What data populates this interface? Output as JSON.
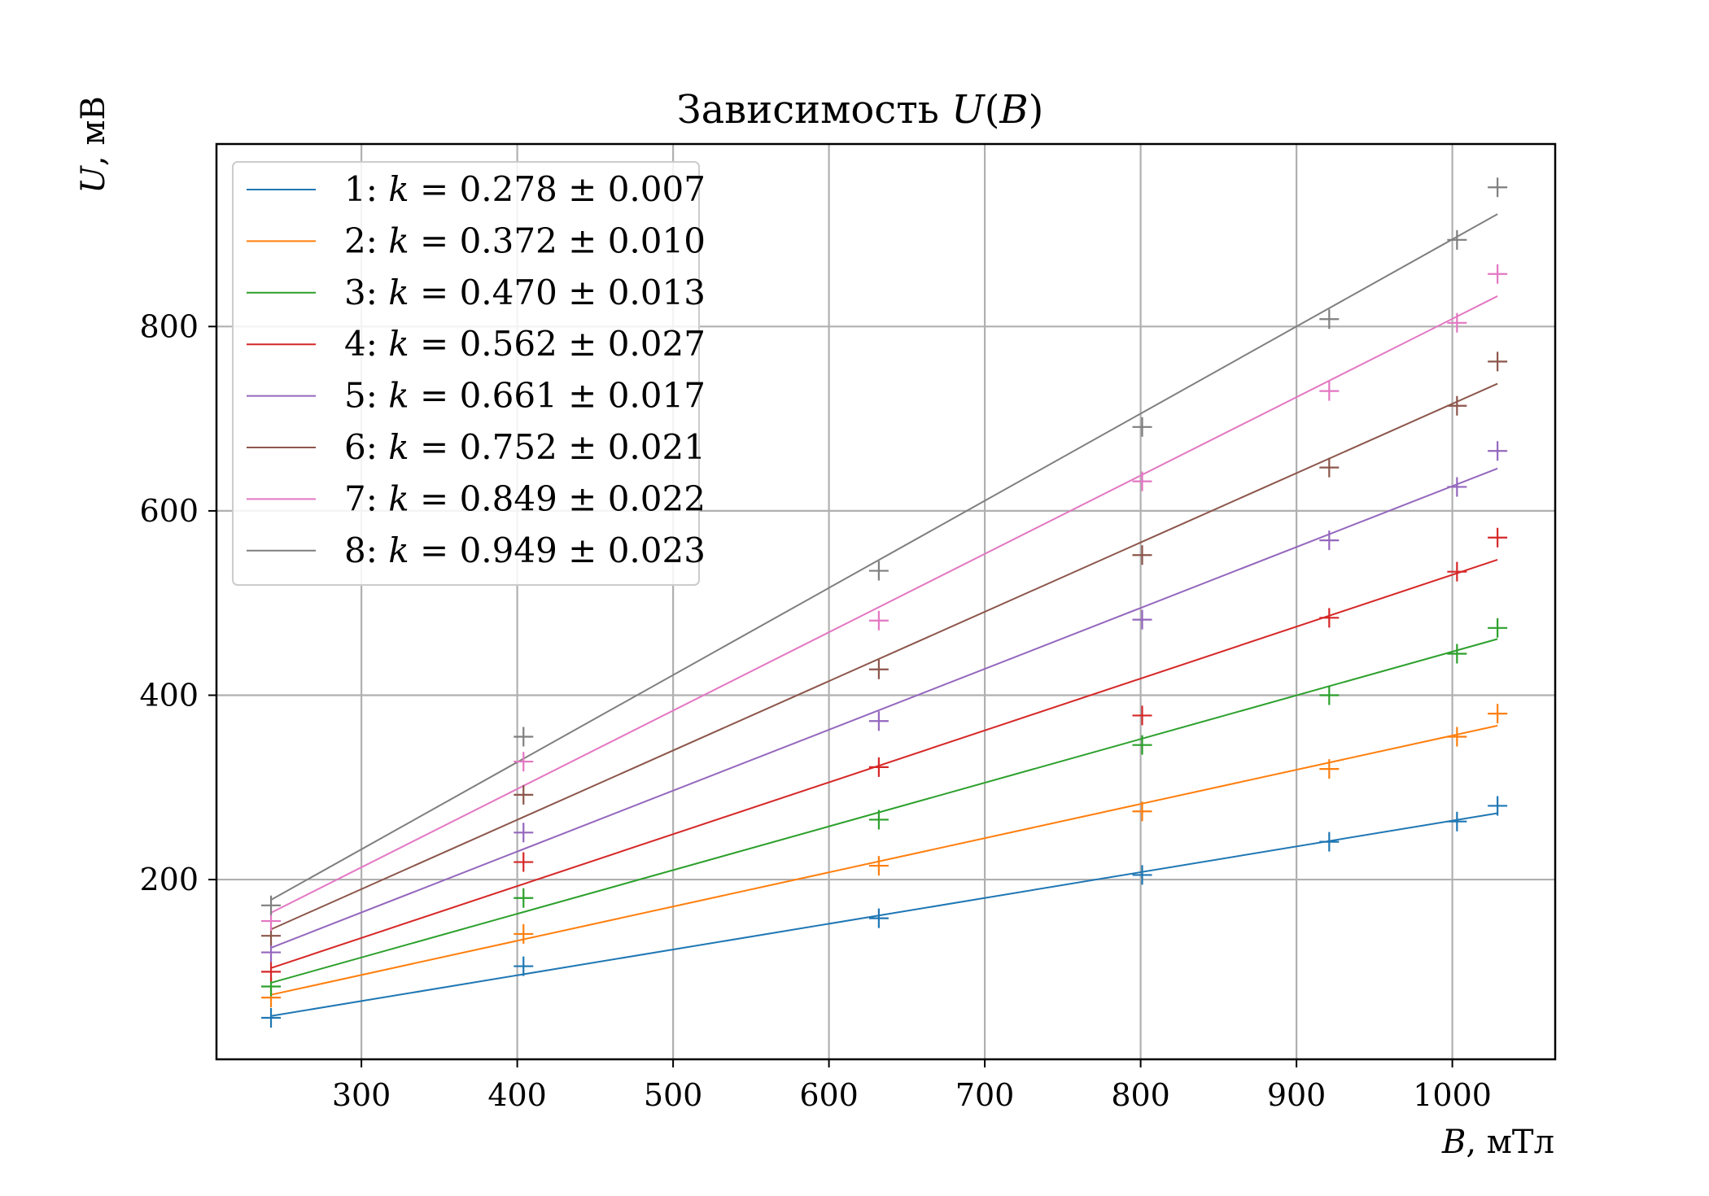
{
  "chart_data": {
    "type": "scatter",
    "title": {
      "prefix": "Зависимость ",
      "var": "U",
      "open": "(",
      "arg": "B",
      "close": ")"
    },
    "xlabel": {
      "var": "B",
      "unit": ", мТл"
    },
    "ylabel": {
      "var": "U",
      "unit": ", мВ"
    },
    "xlim": [
      207,
      1066
    ],
    "ylim": [
      5,
      998
    ],
    "xticks": [
      300,
      400,
      500,
      600,
      700,
      800,
      900,
      1000
    ],
    "yticks": [
      200,
      400,
      600,
      800
    ],
    "grid": true,
    "legend_position": "upper-left",
    "x": [
      242,
      404,
      632,
      801,
      921,
      1003,
      1029
    ],
    "series": [
      {
        "name": "1",
        "color": "#1f77b4",
        "k": "0.278",
        "err": "0.007",
        "values": [
          50,
          106,
          158,
          205,
          241,
          263,
          280
        ],
        "fit": [
          52,
          272
        ]
      },
      {
        "name": "2",
        "color": "#ff7f0e",
        "k": "0.372",
        "err": "0.010",
        "values": [
          72,
          141,
          215,
          274,
          320,
          355,
          380
        ],
        "fit": [
          75,
          367
        ]
      },
      {
        "name": "3",
        "color": "#2ca02c",
        "k": "0.470",
        "err": "0.013",
        "values": [
          84,
          180,
          265,
          346,
          400,
          445,
          473
        ],
        "fit": [
          88,
          461
        ]
      },
      {
        "name": "4",
        "color": "#d62728",
        "k": "0.562",
        "err": "0.027",
        "values": [
          100,
          219,
          322,
          378,
          484,
          534,
          571
        ],
        "fit": [
          104,
          547
        ]
      },
      {
        "name": "5",
        "color": "#9467bd",
        "k": "0.661",
        "err": "0.017",
        "values": [
          121,
          251,
          372,
          482,
          568,
          626,
          665
        ],
        "fit": [
          126,
          646
        ]
      },
      {
        "name": "6",
        "color": "#8c564b",
        "k": "0.752",
        "err": "0.021",
        "values": [
          139,
          292,
          428,
          552,
          647,
          714,
          762
        ],
        "fit": [
          146,
          738
        ]
      },
      {
        "name": "7",
        "color": "#e377c2",
        "k": "0.849",
        "err": "0.022",
        "values": [
          155,
          328,
          481,
          632,
          730,
          804,
          857
        ],
        "fit": [
          164,
          833
        ]
      },
      {
        "name": "8",
        "color": "#7f7f7f",
        "k": "0.949",
        "err": "0.023",
        "values": [
          172,
          355,
          535,
          691,
          808,
          894,
          951
        ],
        "fit": [
          178,
          922
        ]
      }
    ]
  }
}
